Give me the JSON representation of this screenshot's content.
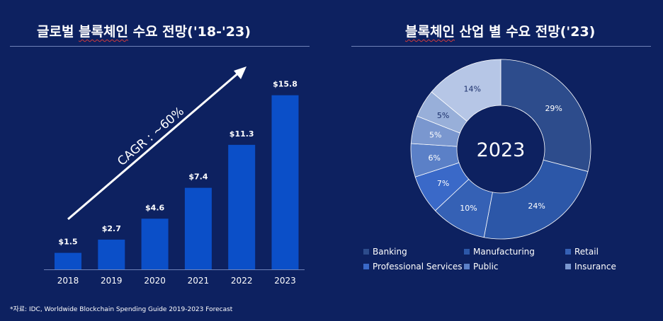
{
  "left_title": {
    "underlined": "블록체인",
    "pre": "글로벌 ",
    "post": " 수요 전망('18-'23)"
  },
  "right_title": {
    "underlined": "블록체인",
    "post": " 산업 별 수요 전망('23)"
  },
  "footnote": "*자료: IDC, Worldwide Blockchain Spending Guide 2019-2023 Forecast",
  "chart_data": [
    {
      "type": "bar",
      "title": "글로벌 블록체인 수요 전망('18-'23)",
      "categories": [
        "2018",
        "2019",
        "2020",
        "2021",
        "2022",
        "2023"
      ],
      "values": [
        1.5,
        2.7,
        4.6,
        7.4,
        11.3,
        15.8
      ],
      "data_labels": [
        "$1.5",
        "$2.7",
        "$4.6",
        "$7.4",
        "$11.3",
        "$15.8"
      ],
      "annotation": "CAGR : ~60%",
      "bar_color": "#0b4fc8",
      "xlabel": "",
      "ylabel": "",
      "ylim": [
        0,
        17
      ]
    },
    {
      "type": "pie",
      "title": "블록체인 산업 별 수요 전망('23)",
      "center_label": "2023",
      "slices": [
        {
          "label": "Banking",
          "value": 29,
          "text": "29%",
          "color": "#2d4c8c"
        },
        {
          "label": "Manufacturing",
          "value": 24,
          "text": "24%",
          "color": "#2c57a8"
        },
        {
          "label": "Retail",
          "value": 10,
          "text": "10%",
          "color": "#3561b5"
        },
        {
          "label": "Professional Services",
          "value": 7,
          "text": "7%",
          "color": "#3a69c8"
        },
        {
          "label": "Public",
          "value": 6,
          "text": "6%",
          "color": "#5b80c7"
        },
        {
          "label": "Insurance",
          "value": 5,
          "text": "5%",
          "color": "#7a97cf"
        },
        {
          "label": "",
          "value": 5,
          "text": "5%",
          "color": "#98afd9"
        },
        {
          "label": "",
          "value": 14,
          "text": "14%",
          "color": "#b6c6e6"
        }
      ]
    }
  ]
}
